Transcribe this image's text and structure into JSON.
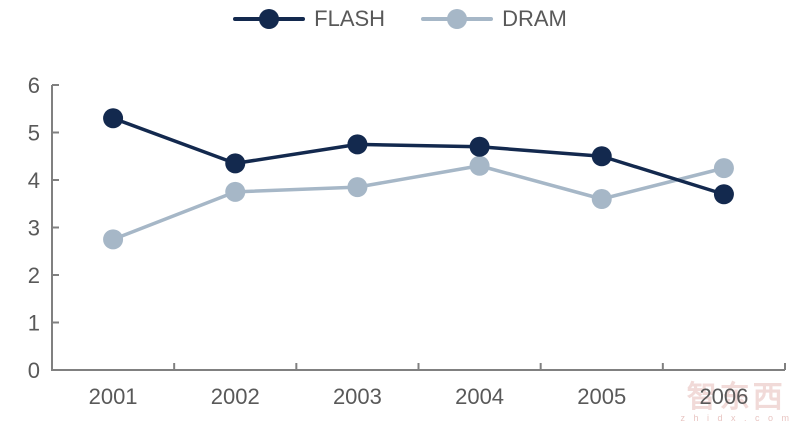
{
  "chart_data": {
    "type": "line",
    "categories": [
      "2001",
      "2002",
      "2003",
      "2004",
      "2005",
      "2006"
    ],
    "series": [
      {
        "name": "FLASH",
        "color": "#13294e",
        "values": [
          5.3,
          4.35,
          4.75,
          4.7,
          4.5,
          3.7
        ]
      },
      {
        "name": "DRAM",
        "color": "#a6b7c7",
        "values": [
          2.75,
          3.75,
          3.85,
          4.3,
          3.6,
          4.25
        ]
      }
    ],
    "title": "",
    "xlabel": "",
    "ylabel": "",
    "ylim": [
      0,
      6
    ],
    "yticks": [
      0,
      1,
      2,
      3,
      4,
      5,
      6
    ],
    "legend_position": "top-center",
    "grid": false,
    "axis_color": "#808080",
    "tick_label_color": "#595959",
    "marker_radius": 10,
    "line_width": 3.5
  },
  "watermark": {
    "logo_text": "智东西",
    "url_text": "z h i d x . c o m"
  }
}
